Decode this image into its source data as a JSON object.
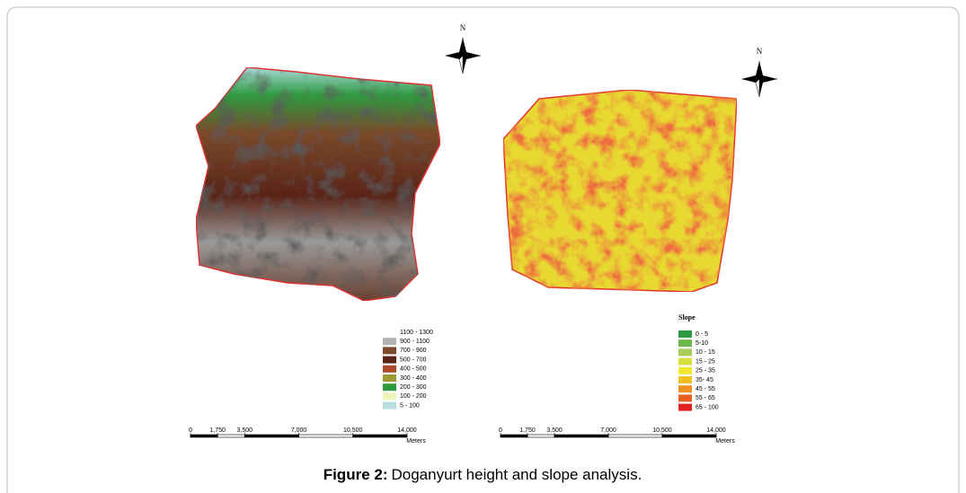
{
  "figure": {
    "label": "Figure 2:",
    "caption": "Doganyurt height and slope analysis."
  },
  "maps": [
    {
      "north": "N",
      "legend": {
        "items": [
          {
            "label": "1100 - 1300",
            "color": "#ffffff"
          },
          {
            "label": "900 - 1100",
            "color": "#b3b3b3"
          },
          {
            "label": "700 - 900",
            "color": "#7a4a2a"
          },
          {
            "label": "500 - 700",
            "color": "#5a2418"
          },
          {
            "label": "400 - 500",
            "color": "#b04a2a"
          },
          {
            "label": "300 - 400",
            "color": "#9c9a30"
          },
          {
            "label": "200 - 300",
            "color": "#2e9a40"
          },
          {
            "label": "100 - 200",
            "color": "#eef3b8"
          },
          {
            "label": "5 - 100",
            "color": "#b8dde0"
          }
        ]
      },
      "scale": {
        "ticks": [
          0,
          {
            "value": 1750,
            "label": "1,750"
          },
          {
            "value": 3500,
            "label": "3,500"
          },
          {
            "value": 7000,
            "label": "7,000"
          },
          {
            "value": 10500,
            "label": "10,500"
          },
          {
            "value": 14000,
            "label": "14,000"
          }
        ],
        "unit": "Meters"
      }
    },
    {
      "north": "N",
      "legend": {
        "title": "Slope",
        "items": [
          {
            "label": "0 - 5",
            "color": "#2e9a40"
          },
          {
            "label": "5-10",
            "color": "#6ab84a"
          },
          {
            "label": "10 - 15",
            "color": "#a8cc58"
          },
          {
            "label": "15 - 25",
            "color": "#d8e040"
          },
          {
            "label": "25 - 35",
            "color": "#f0e830"
          },
          {
            "label": "35- 45",
            "color": "#f4c020"
          },
          {
            "label": "45 - 55",
            "color": "#f09020"
          },
          {
            "label": "55 - 65",
            "color": "#e86020"
          },
          {
            "label": "65 - 100",
            "color": "#e02020"
          }
        ]
      },
      "scale": {
        "ticks": [
          0,
          {
            "value": 1750,
            "label": "1,750"
          },
          {
            "value": 3500,
            "label": "3,500"
          },
          {
            "value": 7000,
            "label": "7,000"
          },
          {
            "value": 10500,
            "label": "10,500"
          },
          {
            "value": 14000,
            "label": "14,000"
          }
        ],
        "unit": "Meters"
      }
    }
  ]
}
